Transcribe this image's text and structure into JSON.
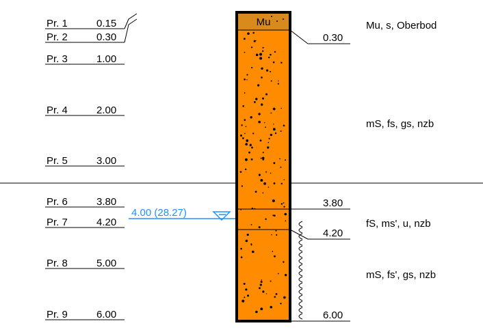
{
  "samples": [
    {
      "label": "Pr. 1",
      "depth": "0.15"
    },
    {
      "label": "Pr. 2",
      "depth": "0.30"
    },
    {
      "label": "Pr. 3",
      "depth": "1.00"
    },
    {
      "label": "Pr. 4",
      "depth": "2.00"
    },
    {
      "label": "Pr. 5",
      "depth": "3.00"
    },
    {
      "label": "Pr. 6",
      "depth": "3.80"
    },
    {
      "label": "Pr. 7",
      "depth": "4.20"
    },
    {
      "label": "Pr. 8",
      "depth": "5.00"
    },
    {
      "label": "Pr. 9",
      "depth": "6.00"
    }
  ],
  "layers": [
    {
      "top": 0.0,
      "bottom": 0.3,
      "symbol": "Mu",
      "description": "Mu, s, Oberbod",
      "color": "#d98a1c"
    },
    {
      "top": 0.3,
      "bottom": 3.8,
      "symbol": "",
      "description": "mS, fs, gs, nzb",
      "color": "#ff8c00"
    },
    {
      "top": 3.8,
      "bottom": 4.2,
      "symbol": "",
      "description": "fS, ms', u, nzb",
      "color": "#ff8c00"
    },
    {
      "top": 4.2,
      "bottom": 6.0,
      "symbol": "",
      "description": "mS, fs', gs, nzb",
      "color": "#ff8c00"
    }
  ],
  "boundaries": [
    "0.30",
    "3.80",
    "4.20",
    "6.00"
  ],
  "groundwater": {
    "label": "4.00 (28.27)",
    "depth": 4.0,
    "color": "#1e90ff"
  },
  "wet_zone": {
    "from": 4.2,
    "to": 6.0
  }
}
